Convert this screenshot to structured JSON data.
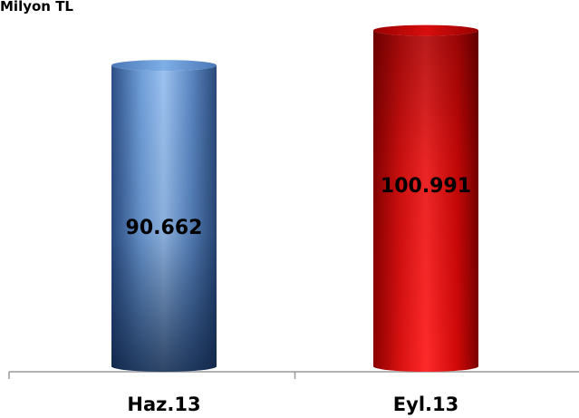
{
  "chart_data": {
    "type": "bar",
    "unit_label": "Milyon TL",
    "categories": [
      "Haz.13",
      "Eyl.13"
    ],
    "values": [
      90662,
      100991
    ],
    "data_labels": [
      "90.662",
      "100.991"
    ],
    "bar_colors": [
      "#5b8fd6",
      "#e01010"
    ],
    "title": "",
    "xlabel": "",
    "ylabel": "",
    "ylim": [
      0,
      110000
    ],
    "grid": false,
    "legend": "none"
  }
}
